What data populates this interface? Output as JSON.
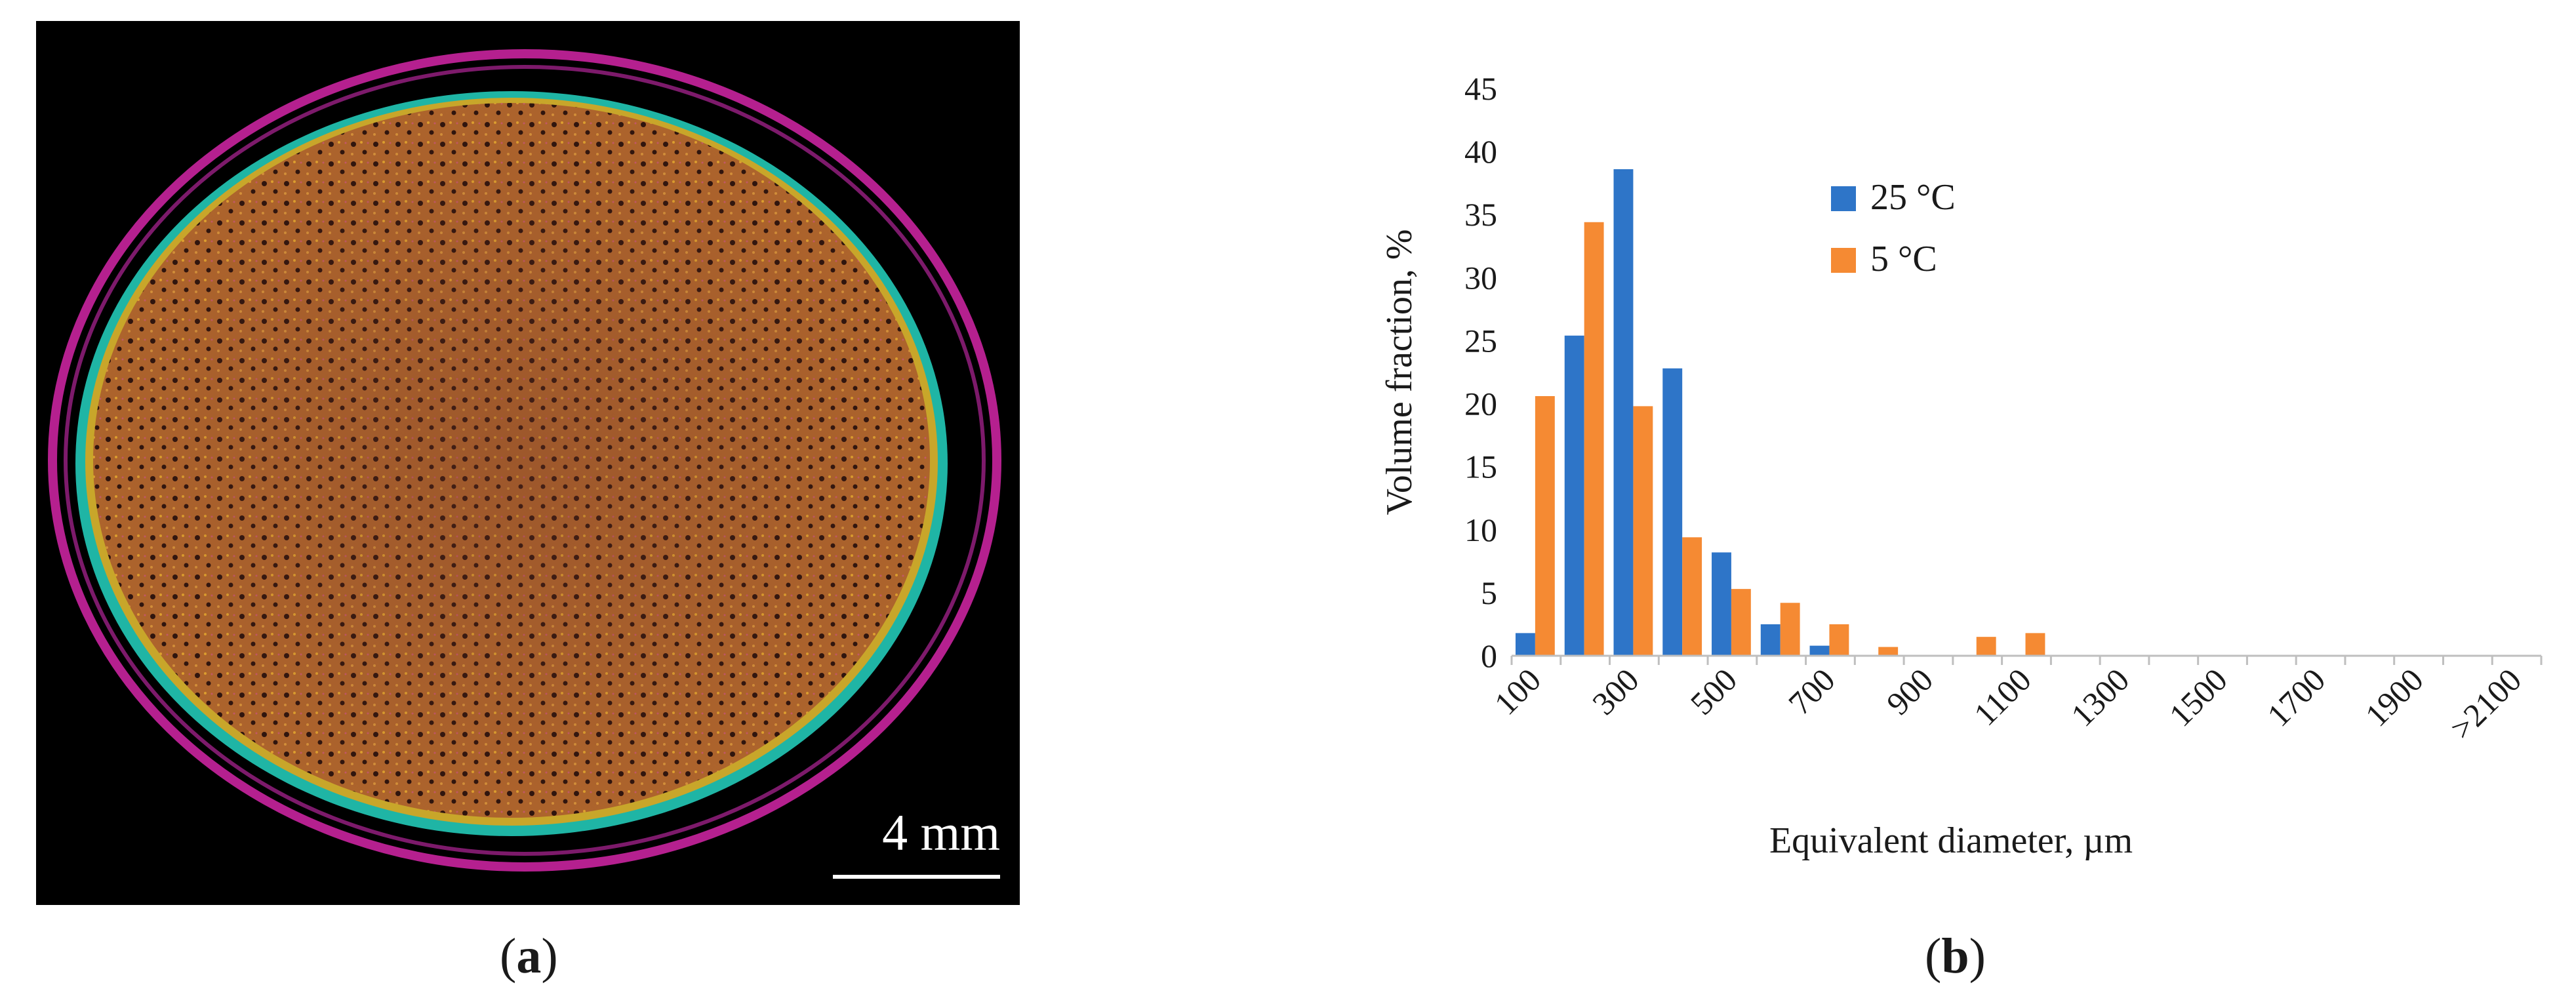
{
  "panel_a": {
    "scale_bar_label": "4 mm",
    "label_paren_open": "(",
    "label_letter": "a",
    "label_paren_close": ")"
  },
  "panel_b": {
    "label_paren_open": "(",
    "label_letter": "b",
    "label_paren_close": ")"
  },
  "chart_data": {
    "type": "bar",
    "xlabel": "Equivalent diameter, µm",
    "ylabel": "Volume fraction, %",
    "ylim": [
      0,
      45
    ],
    "yticks": [
      0,
      5,
      10,
      15,
      20,
      25,
      30,
      35,
      40,
      45
    ],
    "categories": [
      "100",
      "200",
      "300",
      "400",
      "500",
      "600",
      "700",
      "800",
      "900",
      "1000",
      "1100",
      "1200",
      "1300",
      "1400",
      "1500",
      "1600",
      "1700",
      "1800",
      "1900",
      "2000",
      ">2100"
    ],
    "x_tick_labels_shown": [
      "100",
      "300",
      "500",
      "700",
      "900",
      "1100",
      "1300",
      "1500",
      "1700",
      "1900",
      ">2100"
    ],
    "series": [
      {
        "name": "25 °C",
        "color": "#2E75C8",
        "values": [
          1.8,
          25.4,
          38.6,
          22.8,
          8.2,
          2.5,
          0.8,
          0,
          0,
          0,
          0,
          0,
          0,
          0,
          0,
          0,
          0,
          0,
          0,
          0,
          0
        ]
      },
      {
        "name": "5 °C",
        "color": "#F58A33",
        "values": [
          20.6,
          34.4,
          19.8,
          9.4,
          5.3,
          4.2,
          2.5,
          0.7,
          0,
          1.5,
          1.8,
          0,
          0,
          0,
          0,
          0,
          0,
          0,
          0,
          0,
          0
        ]
      }
    ],
    "legend_position": "top-center",
    "grid": false
  }
}
